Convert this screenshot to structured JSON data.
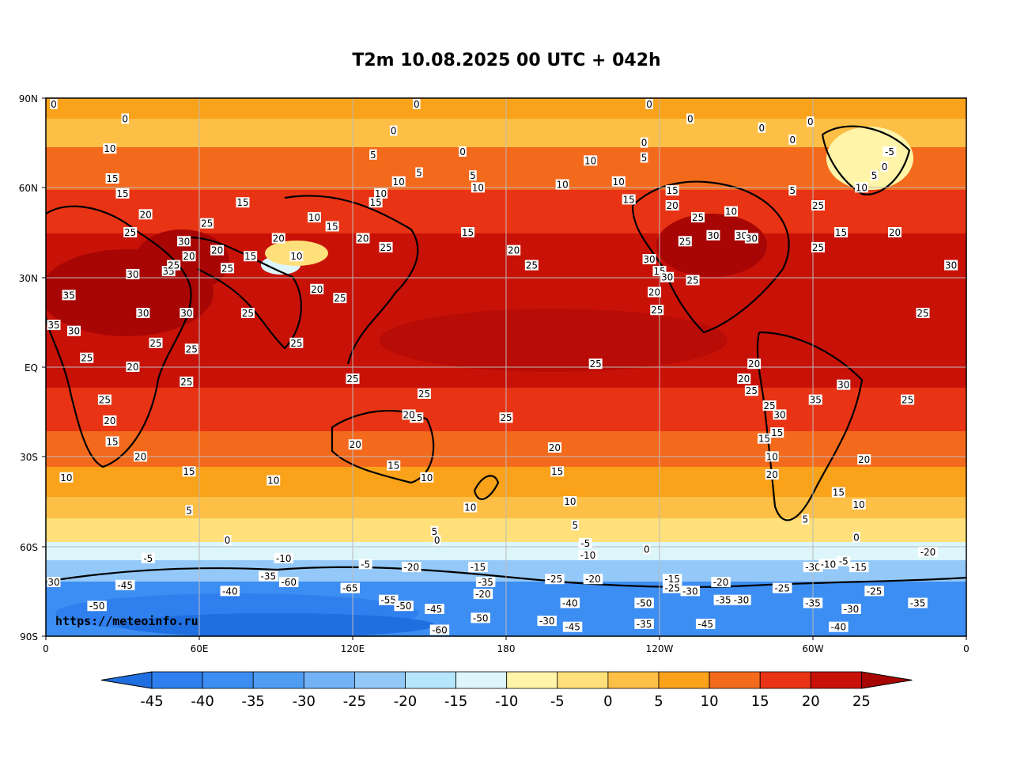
{
  "title": "T2m 10.08.2025 00 UTC + 042h",
  "credit": "https://meteoinfo.ru",
  "lat_ticks": [
    "90N",
    "60N",
    "30N",
    "EQ",
    "30S",
    "60S",
    "90S"
  ],
  "lon_ticks": [
    "0",
    "60E",
    "120E",
    "180",
    "120W",
    "60W",
    "0"
  ],
  "colorbar": {
    "ticks": [
      "-45",
      "-40",
      "-35",
      "-30",
      "-25",
      "-20",
      "-15",
      "-10",
      "-5",
      "0",
      "5",
      "10",
      "15",
      "20",
      "25"
    ],
    "colors": [
      "#1f6fe0",
      "#2f7fee",
      "#3c8ef2",
      "#4f9cf3",
      "#72b2f5",
      "#93c8f8",
      "#b6e6fb",
      "#dcf6fb",
      "#fff4a8",
      "#ffe07a",
      "#fdbf45",
      "#f9a21a",
      "#f46a1c",
      "#e83414",
      "#c81208",
      "#a80604"
    ]
  },
  "contour_labels": [
    {
      "t": "0",
      "lon": 0.0,
      "lat": 88
    },
    {
      "t": "0",
      "lon": 31,
      "lat": 83
    },
    {
      "t": "10",
      "lon": 25,
      "lat": 73
    },
    {
      "t": "15",
      "lon": 26,
      "lat": 63
    },
    {
      "t": "15",
      "lon": 30,
      "lat": 58
    },
    {
      "t": "20",
      "lon": 39,
      "lat": 51
    },
    {
      "t": "25",
      "lon": 33,
      "lat": 45
    },
    {
      "t": "35",
      "lon": 9,
      "lat": 24
    },
    {
      "t": "35",
      "lon": 3,
      "lat": 14
    },
    {
      "t": "30",
      "lon": 11,
      "lat": 12
    },
    {
      "t": "25",
      "lon": 16,
      "lat": 3
    },
    {
      "t": "25",
      "lon": 23,
      "lat": -11
    },
    {
      "t": "20",
      "lon": 25,
      "lat": -18
    },
    {
      "t": "15",
      "lon": 26,
      "lat": -25
    },
    {
      "t": "20",
      "lon": 37,
      "lat": -30
    },
    {
      "t": "10",
      "lon": 8,
      "lat": -37
    },
    {
      "t": "5",
      "lon": 56,
      "lat": -48
    },
    {
      "t": "15",
      "lon": 56,
      "lat": -35
    },
    {
      "t": "10",
      "lon": 89,
      "lat": -38
    },
    {
      "t": "0",
      "lon": 71,
      "lat": -58
    },
    {
      "t": "-5",
      "lon": 40,
      "lat": -64
    },
    {
      "t": "30",
      "lon": 1,
      "lat": -72
    },
    {
      "t": "-50",
      "lon": 20,
      "lat": -80
    },
    {
      "t": "-45",
      "lon": 31,
      "lat": -73
    },
    {
      "t": "-60",
      "lon": 95,
      "lat": -72
    },
    {
      "t": "-40",
      "lon": 72,
      "lat": -75
    },
    {
      "t": "-65",
      "lon": 119,
      "lat": -74
    },
    {
      "t": "-55",
      "lon": 134,
      "lat": -78
    },
    {
      "t": "-50",
      "lon": 140,
      "lat": -80
    },
    {
      "t": "-45",
      "lon": 152,
      "lat": -81
    },
    {
      "t": "-60",
      "lon": 154,
      "lat": -88
    },
    {
      "t": "-35",
      "lon": 87,
      "lat": -70
    },
    {
      "t": "-10",
      "lon": 93,
      "lat": -64
    },
    {
      "t": "-5",
      "lon": 125,
      "lat": -66
    },
    {
      "t": "-20",
      "lon": 143,
      "lat": -67
    },
    {
      "t": "-15",
      "lon": 169,
      "lat": -67
    },
    {
      "t": "-25",
      "lon": -161,
      "lat": -71
    },
    {
      "t": "-20",
      "lon": -146,
      "lat": -71
    },
    {
      "t": "-10",
      "lon": -148,
      "lat": -63
    },
    {
      "t": "-5",
      "lon": -149,
      "lat": -59
    },
    {
      "t": "0",
      "lon": -125,
      "lat": -61
    },
    {
      "t": "-15",
      "lon": -115,
      "lat": -71
    },
    {
      "t": "-25",
      "lon": -115,
      "lat": -74
    },
    {
      "t": "-30",
      "lon": -108,
      "lat": -75
    },
    {
      "t": "-20",
      "lon": -96,
      "lat": -72
    },
    {
      "t": "-35",
      "lon": -95,
      "lat": -78
    },
    {
      "t": "-30",
      "lon": -88,
      "lat": -78
    },
    {
      "t": "-25",
      "lon": -72,
      "lat": -74
    },
    {
      "t": "-30",
      "lon": -60,
      "lat": -67
    },
    {
      "t": "-10",
      "lon": -54,
      "lat": -66
    },
    {
      "t": "-5",
      "lon": -48,
      "lat": -65
    },
    {
      "t": "-15",
      "lon": -42,
      "lat": -67
    },
    {
      "t": "-20",
      "lon": -15,
      "lat": -62
    },
    {
      "t": "-25",
      "lon": -36,
      "lat": -75
    },
    {
      "t": "-35",
      "lon": -19,
      "lat": -79
    },
    {
      "t": "-30",
      "lon": -45,
      "lat": -81
    },
    {
      "t": "-35",
      "lon": -60,
      "lat": -79
    },
    {
      "t": "-40",
      "lon": -50,
      "lat": -87
    },
    {
      "t": "-45",
      "lon": -102,
      "lat": -86
    },
    {
      "t": "-50",
      "lon": -126,
      "lat": -79
    },
    {
      "t": "-35",
      "lon": -126,
      "lat": -86
    },
    {
      "t": "-40",
      "lon": -155,
      "lat": -79
    },
    {
      "t": "-45",
      "lon": -154,
      "lat": -87
    },
    {
      "t": "-30",
      "lon": -164,
      "lat": -85
    },
    {
      "t": "-20",
      "lon": 171,
      "lat": -76
    },
    {
      "t": "-35",
      "lon": 172,
      "lat": -72
    },
    {
      "t": "-50",
      "lon": 170,
      "lat": -84
    },
    {
      "t": "5",
      "lon": 152,
      "lat": -55
    },
    {
      "t": "0",
      "lon": 153,
      "lat": -58
    },
    {
      "t": "10",
      "lon": 166,
      "lat": -47
    },
    {
      "t": "10",
      "lon": -155,
      "lat": -45
    },
    {
      "t": "5",
      "lon": -153,
      "lat": -53
    },
    {
      "t": "15",
      "lon": -160,
      "lat": -35
    },
    {
      "t": "20",
      "lon": -161,
      "lat": -27
    },
    {
      "t": "25",
      "lon": -180,
      "lat": -17
    },
    {
      "t": "25",
      "lon": -145,
      "lat": 1
    },
    {
      "t": "20",
      "lon": 121,
      "lat": -26
    },
    {
      "t": "15",
      "lon": 136,
      "lat": -33
    },
    {
      "t": "10",
      "lon": 149,
      "lat": -37
    },
    {
      "t": "25",
      "lon": 148,
      "lat": -9
    },
    {
      "t": "15",
      "lon": 145,
      "lat": -17
    },
    {
      "t": "20",
      "lon": 142,
      "lat": -16
    },
    {
      "t": "25",
      "lon": 120,
      "lat": -4
    },
    {
      "t": "25",
      "lon": 98,
      "lat": 8
    },
    {
      "t": "25",
      "lon": 115,
      "lat": 23
    },
    {
      "t": "20",
      "lon": 106,
      "lat": 26
    },
    {
      "t": "25",
      "lon": 79,
      "lat": 18
    },
    {
      "t": "25",
      "lon": 57,
      "lat": 6
    },
    {
      "t": "25",
      "lon": 55,
      "lat": -5
    },
    {
      "t": "30",
      "lon": 55,
      "lat": 18
    },
    {
      "t": "30",
      "lon": 38,
      "lat": 18
    },
    {
      "t": "25",
      "lon": 43,
      "lat": 8
    },
    {
      "t": "20",
      "lon": 34,
      "lat": 0
    },
    {
      "t": "30",
      "lon": 34,
      "lat": 31
    },
    {
      "t": "35",
      "lon": 48,
      "lat": 32
    },
    {
      "t": "25",
      "lon": 50,
      "lat": 34
    },
    {
      "t": "20",
      "lon": 56,
      "lat": 37
    },
    {
      "t": "30",
      "lon": 54,
      "lat": 42
    },
    {
      "t": "25",
      "lon": 63,
      "lat": 48
    },
    {
      "t": "20",
      "lon": 67,
      "lat": 39
    },
    {
      "t": "25",
      "lon": 71,
      "lat": 33
    },
    {
      "t": "15",
      "lon": 80,
      "lat": 37
    },
    {
      "t": "20",
      "lon": 91,
      "lat": 43
    },
    {
      "t": "10",
      "lon": 98,
      "lat": 37
    },
    {
      "t": "10",
      "lon": 105,
      "lat": 50
    },
    {
      "t": "15",
      "lon": 112,
      "lat": 47
    },
    {
      "t": "15",
      "lon": 77,
      "lat": 55
    },
    {
      "t": "20",
      "lon": 124,
      "lat": 43
    },
    {
      "t": "25",
      "lon": 133,
      "lat": 40
    },
    {
      "t": "15",
      "lon": 129,
      "lat": 55
    },
    {
      "t": "10",
      "lon": 131,
      "lat": 58
    },
    {
      "t": "10",
      "lon": 138,
      "lat": 62
    },
    {
      "t": "5",
      "lon": 146,
      "lat": 65
    },
    {
      "t": "5",
      "lon": 128,
      "lat": 71
    },
    {
      "t": "0",
      "lon": 136,
      "lat": 79
    },
    {
      "t": "0",
      "lon": 163,
      "lat": 72
    },
    {
      "t": "0",
      "lon": 145,
      "lat": 89
    },
    {
      "t": "5",
      "lon": 167,
      "lat": 64
    },
    {
      "t": "10",
      "lon": 169,
      "lat": 60
    },
    {
      "t": "15",
      "lon": 165,
      "lat": 45
    },
    {
      "t": "20",
      "lon": -177,
      "lat": 39
    },
    {
      "t": "25",
      "lon": -170,
      "lat": 34
    },
    {
      "t": "10",
      "lon": -158,
      "lat": 61
    },
    {
      "t": "10",
      "lon": -147,
      "lat": 69
    },
    {
      "t": "10",
      "lon": -136,
      "lat": 62
    },
    {
      "t": "15",
      "lon": -132,
      "lat": 56
    },
    {
      "t": "0",
      "lon": -124,
      "lat": 89
    },
    {
      "t": "0",
      "lon": -126,
      "lat": 75
    },
    {
      "t": "5",
      "lon": -126,
      "lat": 70
    },
    {
      "t": "0",
      "lon": -108,
      "lat": 83
    },
    {
      "t": "0",
      "lon": -80,
      "lat": 80
    },
    {
      "t": "0",
      "lon": -61,
      "lat": 82
    },
    {
      "t": "0",
      "lon": -68,
      "lat": 76
    },
    {
      "t": "-5",
      "lon": -30,
      "lat": 72
    },
    {
      "t": "0",
      "lon": -32,
      "lat": 67
    },
    {
      "t": "5",
      "lon": -36,
      "lat": 64
    },
    {
      "t": "10",
      "lon": -41,
      "lat": 60
    },
    {
      "t": "15",
      "lon": -115,
      "lat": 59
    },
    {
      "t": "20",
      "lon": -115,
      "lat": 54
    },
    {
      "t": "25",
      "lon": -105,
      "lat": 50
    },
    {
      "t": "10",
      "lon": -92,
      "lat": 52
    },
    {
      "t": "30",
      "lon": -99,
      "lat": 44
    },
    {
      "t": "30",
      "lon": -88,
      "lat": 44
    },
    {
      "t": "30",
      "lon": -84,
      "lat": 43
    },
    {
      "t": "25",
      "lon": -110,
      "lat": 42
    },
    {
      "t": "5",
      "lon": -68,
      "lat": 59
    },
    {
      "t": "15",
      "lon": -49,
      "lat": 45
    },
    {
      "t": "25",
      "lon": -58,
      "lat": 54
    },
    {
      "t": "25",
      "lon": -58,
      "lat": 40
    },
    {
      "t": "20",
      "lon": -28,
      "lat": 45
    },
    {
      "t": "30",
      "lon": -6,
      "lat": 34
    },
    {
      "t": "30",
      "lon": -124,
      "lat": 36
    },
    {
      "t": "15",
      "lon": -120,
      "lat": 32
    },
    {
      "t": "30",
      "lon": -117,
      "lat": 30
    },
    {
      "t": "25",
      "lon": -107,
      "lat": 29
    },
    {
      "t": "20",
      "lon": -122,
      "lat": 25
    },
    {
      "t": "25",
      "lon": -121,
      "lat": 19
    },
    {
      "t": "25",
      "lon": -17,
      "lat": 18
    },
    {
      "t": "20",
      "lon": -83,
      "lat": 1
    },
    {
      "t": "20",
      "lon": -87,
      "lat": -4
    },
    {
      "t": "25",
      "lon": -84,
      "lat": -8
    },
    {
      "t": "25",
      "lon": -77,
      "lat": -13
    },
    {
      "t": "30",
      "lon": -73,
      "lat": -16
    },
    {
      "t": "15",
      "lon": -74,
      "lat": -22
    },
    {
      "t": "15",
      "lon": -79,
      "lat": -24
    },
    {
      "t": "10",
      "lon": -76,
      "lat": -30
    },
    {
      "t": "20",
      "lon": -76,
      "lat": -36
    },
    {
      "t": "35",
      "lon": -59,
      "lat": -11
    },
    {
      "t": "30",
      "lon": -48,
      "lat": -6
    },
    {
      "t": "25",
      "lon": -23,
      "lat": -11
    },
    {
      "t": "20",
      "lon": -40,
      "lat": -31
    },
    {
      "t": "15",
      "lon": -50,
      "lat": -42
    },
    {
      "t": "10",
      "lon": -42,
      "lat": -46
    },
    {
      "t": "5",
      "lon": -63,
      "lat": -51
    },
    {
      "t": "0",
      "lon": -43,
      "lat": -57
    }
  ]
}
